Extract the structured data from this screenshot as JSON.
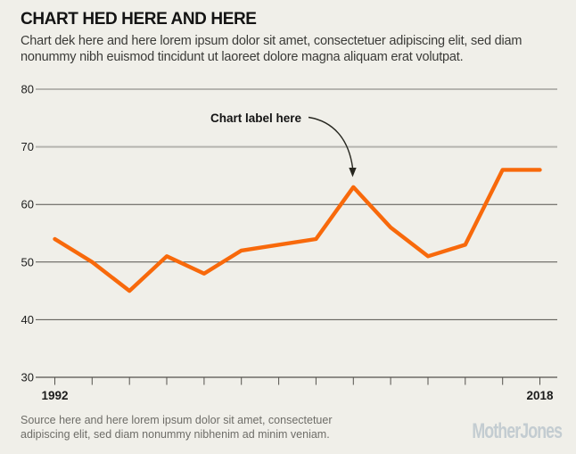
{
  "header": {
    "title": "CHART HED HERE AND HERE",
    "dek_lines": [
      "Chart dek here and here lorem ipsum dolor sit amet, consectetuer adipiscing elit, sed diam",
      "nonummy nibh euismod tincidunt ut laoreet dolore magna aliquam erat volutpat."
    ]
  },
  "chart_data": {
    "type": "line",
    "x": [
      1992,
      1994,
      1996,
      1998,
      2000,
      2002,
      2004,
      2006,
      2008,
      2010,
      2012,
      2014,
      2016,
      2018
    ],
    "values": [
      54,
      50,
      45,
      51,
      48,
      52,
      53,
      54,
      63,
      56,
      51,
      53,
      66,
      66
    ],
    "title": "CHART HED HERE AND HERE",
    "xlabel": "",
    "ylabel": "",
    "ylim": [
      30,
      80
    ],
    "xlim": [
      1992,
      2018
    ],
    "grid": true,
    "legend": false,
    "line_color": "#f8690b",
    "ytick_labels": [
      "80",
      "70",
      "60",
      "50",
      "40",
      "30"
    ],
    "xtick_labels": [
      "1992",
      "2018"
    ],
    "annotation": {
      "label": "Chart label here",
      "target_year": 2008,
      "target_value": 63
    }
  },
  "footer": {
    "source_lines": [
      "Source here and here lorem ipsum dolor sit amet, consectetuer",
      "adipiscing elit, sed diam nonummy nibhenim ad minim veniam."
    ],
    "logo_text": "MotherJones"
  },
  "colors": {
    "background": "#f0efe9",
    "line": "#f8690b",
    "grid_light": "#b5b4af",
    "grid_dark": "#54524d",
    "logo": "#c3ccd1"
  }
}
